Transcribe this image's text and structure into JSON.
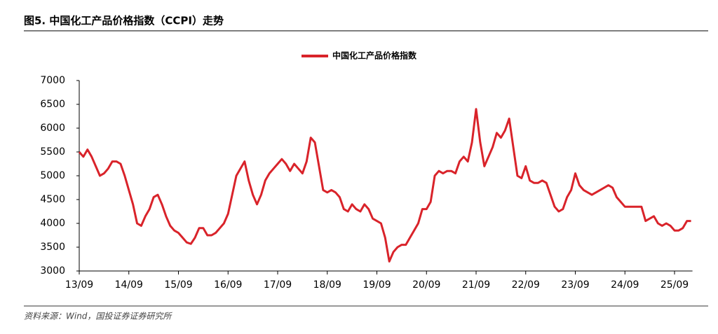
{
  "chart_data": {
    "type": "line",
    "title": "图5. 中国化工产品价格指数（CCPI）走势",
    "source": "资料来源：Wind，国投证券证券研究所",
    "categories": [
      "13/09",
      null,
      null,
      null,
      null,
      null,
      null,
      null,
      null,
      null,
      null,
      null,
      "14/09",
      null,
      null,
      null,
      null,
      null,
      null,
      null,
      null,
      null,
      null,
      null,
      "15/09",
      null,
      null,
      null,
      null,
      null,
      null,
      null,
      null,
      null,
      null,
      null,
      "16/09",
      null,
      null,
      null,
      null,
      null,
      null,
      null,
      null,
      null,
      null,
      null,
      "17/09",
      null,
      null,
      null,
      null,
      null,
      null,
      null,
      null,
      null,
      null,
      null,
      "18/09",
      null,
      null,
      null,
      null,
      null,
      null,
      null,
      null,
      null,
      null,
      null,
      "19/09",
      null,
      null,
      null,
      null,
      null,
      null,
      null,
      null,
      null,
      null,
      null,
      "20/09",
      null,
      null,
      null,
      null,
      null,
      null,
      null,
      null,
      null,
      null,
      null,
      "21/09",
      null,
      null,
      null,
      null,
      null,
      null,
      null,
      null,
      null,
      null,
      null,
      "22/09",
      null,
      null,
      null,
      null,
      null,
      null,
      null,
      null,
      null,
      null,
      null,
      "23/09",
      null,
      null,
      null,
      null,
      null,
      null,
      null,
      null,
      null,
      null,
      null,
      "24/09",
      null,
      null,
      null,
      null,
      null,
      null,
      null,
      null,
      null,
      null,
      null,
      "25/09",
      null,
      null,
      null,
      null
    ],
    "series": [
      {
        "name": "中国化工产品价格指数",
        "color": "#d9232a",
        "values": [
          5500,
          5400,
          5550,
          5400,
          5200,
          5000,
          5050,
          5150,
          5300,
          5300,
          5250,
          5000,
          4700,
          4400,
          4000,
          3950,
          4150,
          4300,
          4550,
          4600,
          4400,
          4150,
          3950,
          3850,
          3800,
          3700,
          3600,
          3570,
          3700,
          3900,
          3900,
          3750,
          3750,
          3800,
          3900,
          4000,
          4200,
          4600,
          5000,
          5150,
          5300,
          4900,
          4600,
          4400,
          4600,
          4900,
          5050,
          5150,
          5250,
          5350,
          5250,
          5100,
          5250,
          5150,
          5050,
          5300,
          5800,
          5700,
          5200,
          4700,
          4650,
          4700,
          4650,
          4550,
          4300,
          4250,
          4400,
          4300,
          4250,
          4400,
          4300,
          4100,
          4050,
          4000,
          3700,
          3200,
          3400,
          3500,
          3550,
          3550,
          3700,
          3850,
          4000,
          4300,
          4300,
          4450,
          5000,
          5100,
          5050,
          5100,
          5100,
          5050,
          5300,
          5400,
          5300,
          5700,
          6400,
          5700,
          5200,
          5400,
          5600,
          5900,
          5800,
          5950,
          6200,
          5600,
          5000,
          4950,
          5200,
          4900,
          4850,
          4850,
          4900,
          4850,
          4600,
          4350,
          4250,
          4300,
          4550,
          4700,
          5050,
          4800,
          4700,
          4650,
          4600,
          4650,
          4700,
          4750,
          4800,
          4750,
          4550,
          4450,
          4350,
          4350,
          4350,
          4350,
          4350,
          4050,
          4100,
          4150,
          4000,
          3950,
          4000,
          3950,
          3850,
          3850,
          3900,
          4050,
          4050
        ]
      }
    ],
    "ylim": [
      3000,
      7000
    ],
    "yticks": [
      3000,
      3500,
      4000,
      4500,
      5000,
      5500,
      6000,
      6500,
      7000
    ],
    "legend": "top"
  }
}
